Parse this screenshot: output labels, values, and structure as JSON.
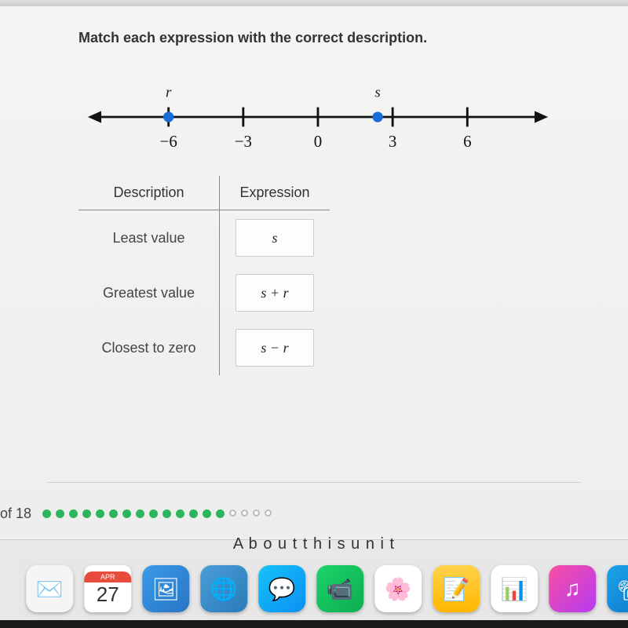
{
  "question": {
    "prompt": "Match each expression with the correct description.",
    "numberline": {
      "ticks": [
        -6,
        -3,
        0,
        3,
        6
      ],
      "xmin": -9,
      "xmax": 9,
      "points": [
        {
          "label": "r",
          "value": -6,
          "color": "#1a6dd6"
        },
        {
          "label": "s",
          "value": 2.4,
          "color": "#1a6dd6"
        }
      ],
      "axis_color": "#111111",
      "tick_label_fontsize": 22
    },
    "table": {
      "headers": {
        "desc": "Description",
        "expr": "Expression"
      },
      "rows": [
        {
          "desc": "Least value",
          "expr": "s"
        },
        {
          "desc": "Greatest value",
          "expr": "s + r"
        },
        {
          "desc": "Closest to zero",
          "expr": "s − r"
        }
      ]
    }
  },
  "progress": {
    "text": "of 18",
    "done": 14,
    "remaining": 4
  },
  "unit_text": "A b o u t  t h i s  u n i t",
  "dock": {
    "calendar": {
      "month": "APR",
      "day": "27"
    },
    "icons": [
      {
        "name": "mail-icon",
        "bg": "#f5f5f5",
        "glyph": "✉️"
      },
      {
        "name": "calendar-icon"
      },
      {
        "name": "preview-icon",
        "bg": "linear-gradient(135deg,#3a9be8,#2775c4)",
        "glyph": "🖼"
      },
      {
        "name": "globe-icon",
        "bg": "linear-gradient(135deg,#4a9ed8,#2a7ab8)",
        "glyph": "🌐"
      },
      {
        "name": "messages-icon",
        "bg": "linear-gradient(135deg,#15c3f9,#0b8ff2)",
        "glyph": "💬"
      },
      {
        "name": "facetime-icon",
        "bg": "linear-gradient(135deg,#1cd46a,#0dad4f)",
        "glyph": "📹"
      },
      {
        "name": "photos-icon",
        "bg": "#ffffff",
        "glyph": "🌸"
      },
      {
        "name": "notes-icon",
        "bg": "linear-gradient(180deg,#ffd24a,#ffb700)",
        "glyph": "📝"
      },
      {
        "name": "numbers-icon",
        "bg": "#ffffff",
        "glyph": "📊"
      },
      {
        "name": "itunes-icon",
        "bg": "linear-gradient(135deg,#fb4ea3,#b33bf1)",
        "glyph": "♫"
      },
      {
        "name": "keynote-icon",
        "bg": "linear-gradient(135deg,#1aa4e8,#0e73c8)",
        "glyph": "📽"
      }
    ]
  }
}
